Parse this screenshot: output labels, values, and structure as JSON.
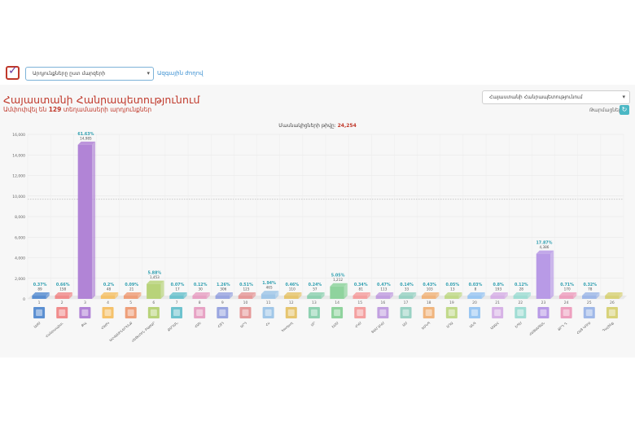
{
  "header": {
    "select_value": "Արդյունքները ըստ մարզերի",
    "link_label": "Ազգային ժողով"
  },
  "title": "Հայաստանի Հանրապետությունում",
  "subtitle_prefix": "Ամփոփվել են",
  "subtitle_count": "129",
  "subtitle_suffix": "տեղամասերի արդյունքներ",
  "region_select_value": "Հայաստանի Հանրապետությունում",
  "update_label": "Թարմացնել",
  "colors": {
    "accent": "#c0392b",
    "link": "#3a8fd1",
    "button": "#4bb7c4"
  },
  "chart_data": {
    "type": "bar",
    "title": "Մասնակիցների թիվը",
    "total_label": "24,254",
    "ylim": [
      0,
      16000
    ],
    "yticks": [
      "0",
      "2,000",
      "4,000",
      "6,000",
      "8,000",
      "10,000",
      "12,000",
      "14,000",
      "16,000"
    ],
    "grid": true,
    "categories": [
      "1",
      "2",
      "3",
      "4",
      "5",
      "6",
      "7",
      "8",
      "9",
      "10",
      "11",
      "12",
      "13",
      "14",
      "15",
      "16",
      "17",
      "18",
      "19",
      "20",
      "21",
      "22",
      "23",
      "24",
      "25",
      "26"
    ],
    "party_names": [
      "ԱԺՄ",
      "Հանրապետ.",
      "Քպ",
      "ՀԱԺԿ",
      "ԱՀՎԱՍԻՆԵՐԵՆՔ",
      "ՀԵԹՀՈՒՆ ԲԱԺԱՐ",
      "ՔՄԴՄՆ",
      "ՀԱԵ",
      "ՀՅԴ",
      "ԱՐԴ",
      "Հս",
      "Խաղաղ",
      "ՄՐ",
      "ԵՄՄ",
      "ՀԿՄ",
      "ՏԱՄ ԱԿՄ",
      "ԱՄ",
      "ԵՄԿՊ",
      "ԱԴԱ",
      "ԱՆԳ",
      "ԱԱԱՀ",
      "ԵՊՄ",
      "ՀԱՅԱՍՏԱՆ",
      "ՔՐԴ Դ.",
      "ՀԱՅ ԿՈՒՍ",
      "Դաշինք"
    ],
    "values": [
      89,
      158,
      14985,
      48,
      21,
      1453,
      17,
      30,
      306,
      123,
      465,
      110,
      57,
      1212,
      81,
      113,
      33,
      103,
      13,
      8,
      193,
      28,
      4386,
      170,
      78,
      0
    ],
    "percent_labels": [
      "0.37%",
      "0.66%",
      "61.63%",
      "0.2%",
      "0.09%",
      "5.88%",
      "0.07%",
      "0.12%",
      "1.26%",
      "0.51%",
      "1.94%",
      "0.46%",
      "0.24%",
      "5.05%",
      "0.34%",
      "0.47%",
      "0.14%",
      "0.43%",
      "0.05%",
      "0.03%",
      "0.8%",
      "0.12%",
      "17.87%",
      "0.71%",
      "0.32%",
      ""
    ],
    "value_labels": [
      "89",
      "158",
      "14,985",
      "48",
      "21",
      "1,453",
      "17",
      "30",
      "306",
      "123",
      "465",
      "110",
      "57",
      "1,212",
      "81",
      "113",
      "33",
      "103",
      "13",
      "8",
      "193",
      "28",
      "4,386",
      "170",
      "78",
      ""
    ],
    "colors": [
      "#5b8fd1",
      "#f08c8c",
      "#b184d6",
      "#f5c26b",
      "#ee9f7a",
      "#b8d37a",
      "#6ec3ce",
      "#e7a2c4",
      "#9aa6e0",
      "#e59a9a",
      "#a1c7e8",
      "#e6c56f",
      "#8fd1b1",
      "#8fd39d",
      "#f4a0a0",
      "#c2a0e0",
      "#9ad2c4",
      "#f0b57e",
      "#c1d98a",
      "#9bc7f2",
      "#d7b2e6",
      "#a0ddd4",
      "#b89ae6",
      "#eda0bf",
      "#9fb8e8",
      "#d8d27a"
    ]
  }
}
